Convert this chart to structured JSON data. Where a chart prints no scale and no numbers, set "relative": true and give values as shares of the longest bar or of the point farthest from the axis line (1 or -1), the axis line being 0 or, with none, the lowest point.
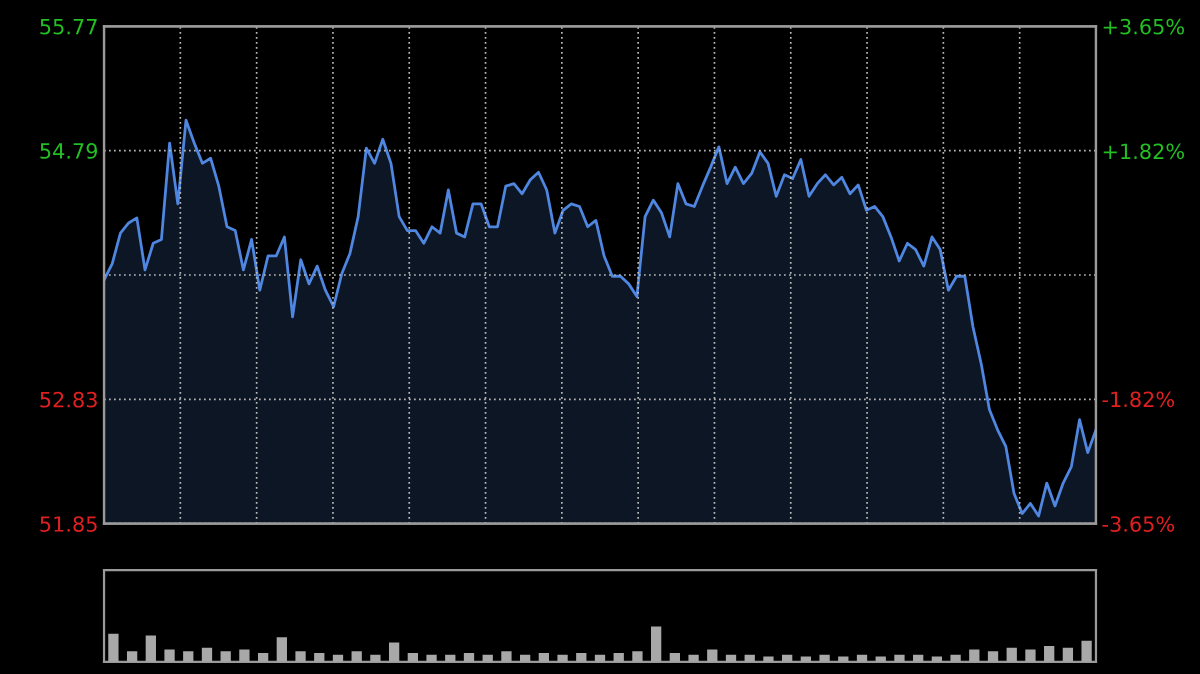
{
  "chart_data": [
    {
      "type": "area",
      "color": "#4f86e0",
      "categories": [
        null,
        null,
        null,
        null,
        null,
        null,
        null,
        null,
        null,
        null,
        null,
        null,
        null,
        null,
        null,
        null,
        null,
        null,
        null,
        null,
        null,
        null,
        null,
        null,
        null,
        null,
        null,
        null,
        null,
        null,
        null,
        null,
        null,
        null,
        null,
        null,
        null,
        null,
        null,
        null,
        null,
        null,
        null,
        null,
        null,
        null,
        null,
        null,
        null,
        null,
        null,
        null,
        null,
        null,
        null,
        null,
        null,
        null,
        null,
        null,
        null,
        null,
        null,
        null,
        null,
        null,
        null,
        null,
        null,
        null,
        null,
        null,
        null,
        null,
        null,
        null,
        null,
        null,
        null,
        null,
        null,
        null,
        null,
        null,
        null,
        null,
        null,
        null,
        null,
        null,
        null,
        null,
        null,
        null,
        null,
        null,
        null,
        null,
        null,
        null,
        null,
        null,
        null,
        null,
        null,
        null,
        null,
        null,
        null,
        null,
        null,
        null,
        null,
        null,
        null,
        null,
        null,
        null,
        null,
        null,
        null,
        null
      ],
      "values": [
        53.77,
        53.9,
        54.14,
        54.22,
        54.26,
        53.85,
        54.06,
        54.09,
        54.85,
        54.37,
        55.03,
        54.85,
        54.69,
        54.73,
        54.51,
        54.19,
        54.16,
        53.85,
        54.09,
        53.69,
        53.96,
        53.96,
        54.11,
        53.48,
        53.93,
        53.74,
        53.88,
        53.69,
        53.56,
        53.82,
        53.98,
        54.27,
        54.81,
        54.69,
        54.88,
        54.69,
        54.27,
        54.16,
        54.16,
        54.06,
        54.19,
        54.14,
        54.48,
        54.14,
        54.11,
        54.37,
        54.37,
        54.19,
        54.19,
        54.51,
        54.53,
        54.45,
        54.56,
        54.62,
        54.48,
        54.14,
        54.32,
        54.37,
        54.35,
        54.19,
        54.24,
        53.96,
        53.8,
        53.8,
        53.74,
        53.64,
        54.27,
        54.4,
        54.3,
        54.11,
        54.53,
        54.37,
        54.35,
        54.51,
        54.66,
        54.82,
        54.53,
        54.66,
        54.53,
        54.61,
        54.78,
        54.69,
        54.43,
        54.6,
        54.57,
        54.72,
        54.43,
        54.53,
        54.6,
        54.52,
        54.58,
        54.45,
        54.52,
        54.32,
        54.35,
        54.27,
        54.11,
        53.92,
        54.06,
        54.01,
        53.88,
        54.11,
        54.01,
        53.69,
        53.8,
        53.8,
        53.4,
        53.11,
        52.75,
        52.59,
        52.46,
        52.09,
        51.93,
        52.01,
        51.91,
        52.17,
        51.99,
        52.17,
        52.3,
        52.67,
        52.41,
        52.59
      ],
      "ylim": [
        51.85,
        55.77
      ],
      "yticks": [
        51.85,
        52.83,
        {
          "value": 53.81,
          "label": null
        },
        54.79,
        55.77
      ],
      "y2lim": [
        -3.65,
        3.65
      ],
      "y2ticks": [
        {
          "value": -3.65,
          "label": "-3.65%"
        },
        {
          "value": -1.82,
          "label": "-1.82%"
        },
        {
          "value": 0,
          "label": null
        },
        {
          "value": 1.82,
          "label": "+1.82%"
        },
        {
          "value": 3.65,
          "label": "+3.65%"
        }
      ],
      "grid": true,
      "tick_labels": "y"
    },
    {
      "type": "bar",
      "relative": true,
      "color": "#a8a8a8",
      "tick_labels": false,
      "categories": [
        null,
        null,
        null,
        null,
        null,
        null,
        null,
        null,
        null,
        null,
        null,
        null,
        null,
        null,
        null,
        null,
        null,
        null,
        null,
        null,
        null,
        null,
        null,
        null,
        null,
        null,
        null,
        null,
        null,
        null,
        null,
        null,
        null,
        null,
        null,
        null,
        null,
        null,
        null,
        null,
        null,
        null,
        null,
        null,
        null,
        null,
        null,
        null,
        null,
        null,
        null,
        null,
        null
      ],
      "values": [
        0.8,
        0.3,
        0.75,
        0.35,
        0.3,
        0.4,
        0.3,
        0.35,
        0.25,
        0.7,
        0.3,
        0.25,
        0.2,
        0.3,
        0.2,
        0.55,
        0.25,
        0.2,
        0.2,
        0.25,
        0.2,
        0.3,
        0.2,
        0.25,
        0.2,
        0.25,
        0.2,
        0.25,
        0.3,
        1.0,
        0.25,
        0.2,
        0.35,
        0.2,
        0.2,
        0.15,
        0.2,
        0.15,
        0.2,
        0.15,
        0.2,
        0.15,
        0.2,
        0.2,
        0.15,
        0.2,
        0.35,
        0.3,
        0.4,
        0.35,
        0.45,
        0.4,
        0.6
      ]
    }
  ]
}
